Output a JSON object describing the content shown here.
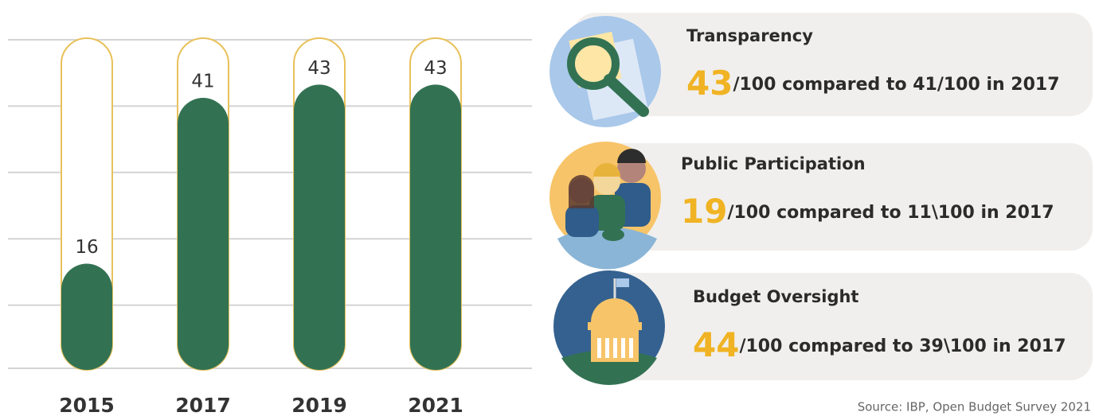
{
  "chart_data": {
    "type": "bar",
    "categories": [
      "2015",
      "2017",
      "2019",
      "2021"
    ],
    "values": [
      16,
      41,
      43,
      43
    ],
    "color": "#327253",
    "outline_color": "#e8c15a",
    "ylim": [
      0,
      50
    ],
    "yticks": [
      0,
      10,
      20,
      30,
      40,
      50
    ],
    "grid": true
  },
  "cards": [
    {
      "title": "Transparency",
      "score": "43",
      "text": "/100 compared to 41/100 in 2017"
    },
    {
      "title": "Public Participation",
      "score": "19",
      "text": "/100 compared to 11\\100 in 2017"
    },
    {
      "title": "Budget Oversight",
      "score": "44",
      "text": "/100 compared to 39\\100 in 2017"
    }
  ],
  "source": "Source: IBP, Open Budget Survey 2021"
}
